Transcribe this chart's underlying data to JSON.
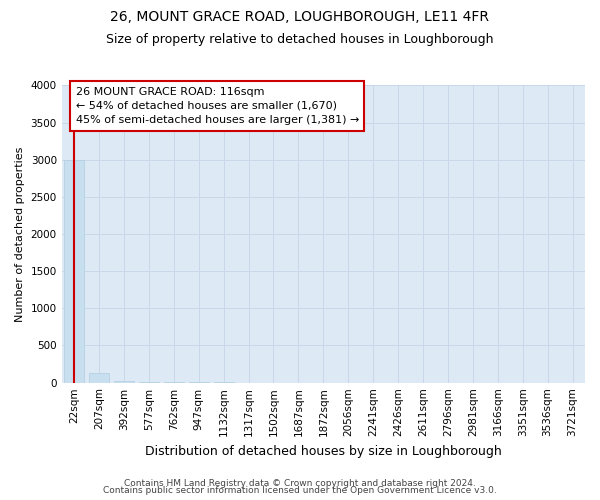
{
  "title": "26, MOUNT GRACE ROAD, LOUGHBOROUGH, LE11 4FR",
  "subtitle": "Size of property relative to detached houses in Loughborough",
  "xlabel": "Distribution of detached houses by size in Loughborough",
  "ylabel": "Number of detached properties",
  "categories": [
    "22sqm",
    "207sqm",
    "392sqm",
    "577sqm",
    "762sqm",
    "947sqm",
    "1132sqm",
    "1317sqm",
    "1502sqm",
    "1687sqm",
    "1872sqm",
    "2056sqm",
    "2241sqm",
    "2426sqm",
    "2611sqm",
    "2796sqm",
    "2981sqm",
    "3166sqm",
    "3351sqm",
    "3536sqm",
    "3721sqm"
  ],
  "values": [
    3000,
    130,
    20,
    5,
    2,
    1,
    1,
    0,
    0,
    0,
    0,
    0,
    0,
    0,
    0,
    0,
    0,
    0,
    0,
    0,
    0
  ],
  "bar_color": "#c8dff0",
  "bar_edge_color": "#b0cce0",
  "annotation_text": "26 MOUNT GRACE ROAD: 116sqm\n← 54% of detached houses are smaller (1,670)\n45% of semi-detached houses are larger (1,381) →",
  "annotation_box_color": "#ffffff",
  "annotation_box_edge": "#cc0000",
  "line_color": "#cc0000",
  "ylim": [
    0,
    4000
  ],
  "yticks": [
    0,
    500,
    1000,
    1500,
    2000,
    2500,
    3000,
    3500,
    4000
  ],
  "grid_color": "#c8d8e8",
  "bg_color": "#ddeaf5",
  "footer1": "Contains HM Land Registry data © Crown copyright and database right 2024.",
  "footer2": "Contains public sector information licensed under the Open Government Licence v3.0.",
  "title_fontsize": 10,
  "subtitle_fontsize": 9,
  "xlabel_fontsize": 9,
  "ylabel_fontsize": 8,
  "tick_fontsize": 7.5,
  "footer_fontsize": 6.5,
  "ann_fontsize": 8
}
